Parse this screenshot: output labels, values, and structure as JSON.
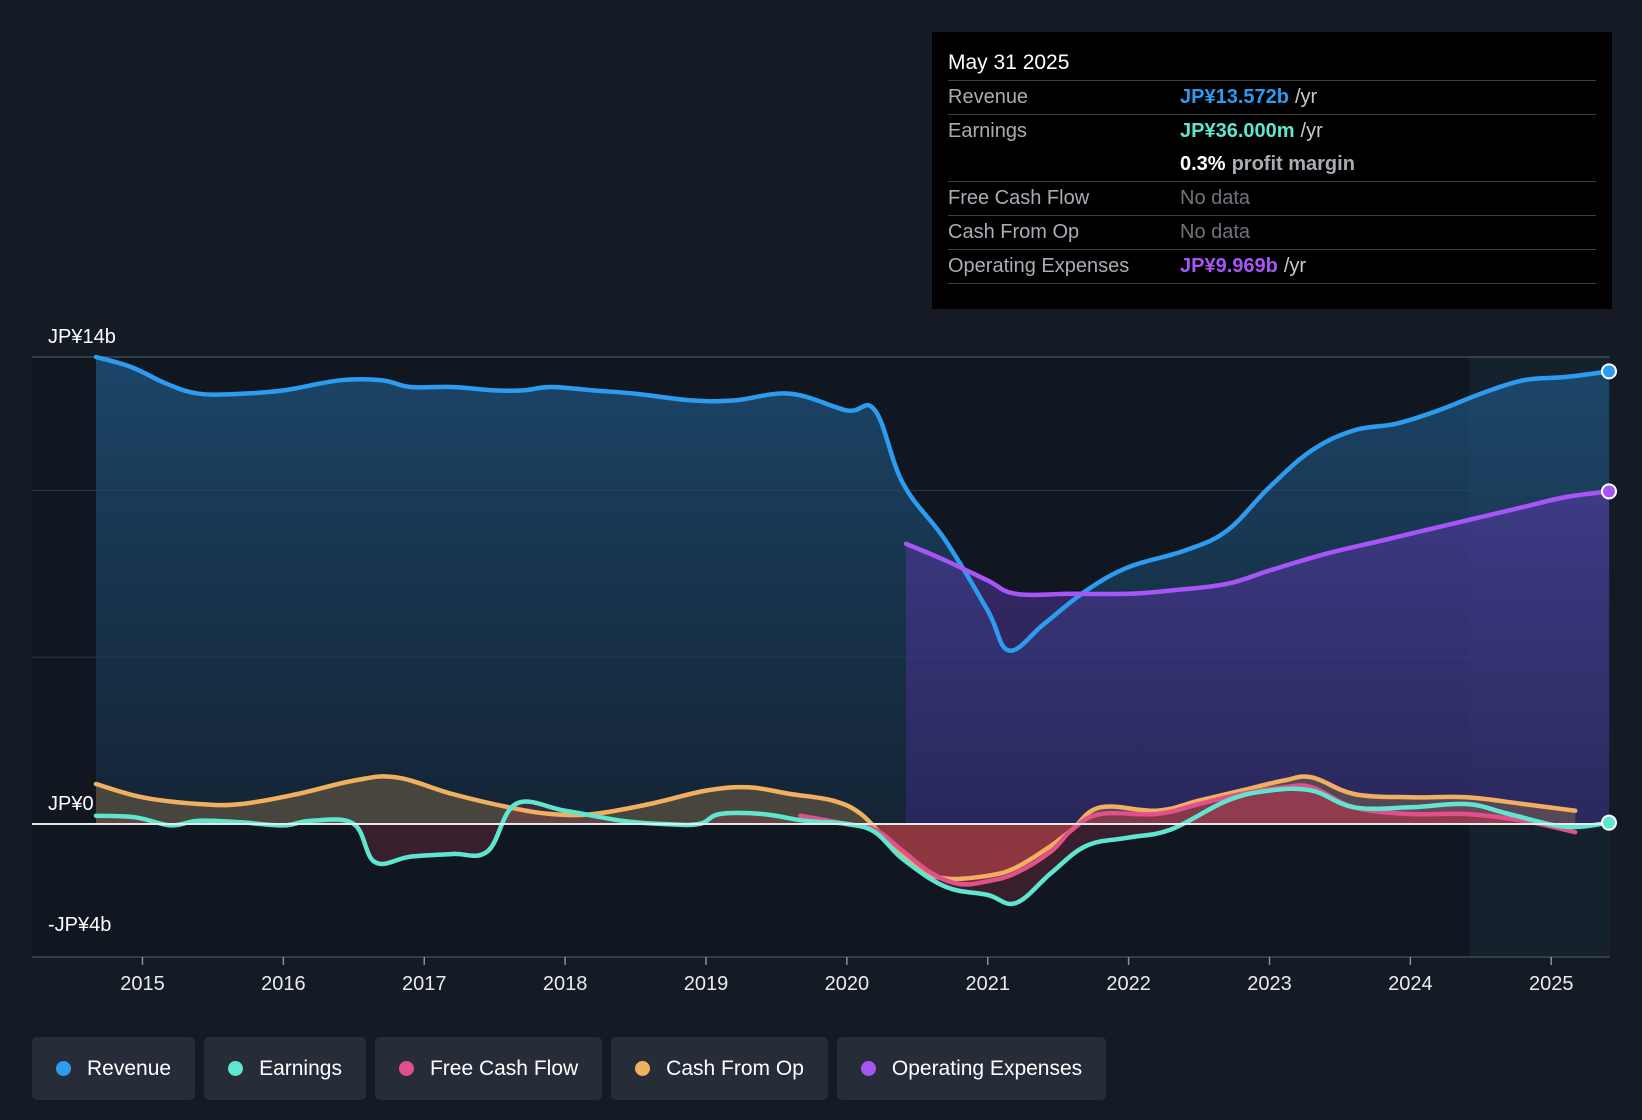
{
  "tooltip": {
    "date": "May 31 2025",
    "revenue_label": "Revenue",
    "revenue_value": "JP¥13.572b",
    "earnings_label": "Earnings",
    "earnings_value": "JP¥36.000m",
    "margin_value": "0.3%",
    "margin_text": "profit margin",
    "fcf_label": "Free Cash Flow",
    "fcf_value": "No data",
    "cfo_label": "Cash From Op",
    "cfo_value": "No data",
    "opex_label": "Operating Expenses",
    "opex_value": "JP¥9.969b",
    "unit": "/yr"
  },
  "legend": [
    {
      "label": "Revenue",
      "color": "#2d9bf0"
    },
    {
      "label": "Earnings",
      "color": "#5ee6d0"
    },
    {
      "label": "Free Cash Flow",
      "color": "#e0508a"
    },
    {
      "label": "Cash From Op",
      "color": "#f0b060"
    },
    {
      "label": "Operating Expenses",
      "color": "#a855f7"
    }
  ],
  "chart_data": {
    "type": "area",
    "y_unit": "JP¥ billions",
    "ylim": [
      -4,
      14
    ],
    "y_tick_labels": [
      {
        "value": 14,
        "label": "JP¥14b"
      },
      {
        "value": 0,
        "label": "JP¥0"
      },
      {
        "value": -4,
        "label": "-JP¥4b"
      }
    ],
    "gridlines": [
      14,
      10,
      5,
      0,
      -4
    ],
    "xlim": [
      2014.67,
      2025.41
    ],
    "x_ticks": [
      2015,
      2016,
      2017,
      2018,
      2019,
      2020,
      2021,
      2022,
      2023,
      2024,
      2025
    ],
    "x_tick_labels": [
      "2015",
      "2016",
      "2017",
      "2018",
      "2019",
      "2020",
      "2021",
      "2022",
      "2023",
      "2024",
      "2025"
    ],
    "forecast_start": 2024.42,
    "series": [
      {
        "name": "Revenue",
        "color": "#2d9bf0",
        "points": [
          [
            2014.67,
            14.0
          ],
          [
            2014.92,
            13.7
          ],
          [
            2015.17,
            13.2
          ],
          [
            2015.4,
            12.9
          ],
          [
            2015.7,
            12.9
          ],
          [
            2016.0,
            13.0
          ],
          [
            2016.4,
            13.3
          ],
          [
            2016.7,
            13.3
          ],
          [
            2016.9,
            13.1
          ],
          [
            2017.2,
            13.1
          ],
          [
            2017.5,
            13.0
          ],
          [
            2017.7,
            13.0
          ],
          [
            2017.9,
            13.1
          ],
          [
            2018.2,
            13.0
          ],
          [
            2018.5,
            12.9
          ],
          [
            2018.9,
            12.7
          ],
          [
            2019.2,
            12.7
          ],
          [
            2019.6,
            12.9
          ],
          [
            2020.0,
            12.4
          ],
          [
            2020.2,
            12.4
          ],
          [
            2020.4,
            10.2
          ],
          [
            2020.7,
            8.5
          ],
          [
            2021.0,
            6.4
          ],
          [
            2021.15,
            5.2
          ],
          [
            2021.4,
            6.0
          ],
          [
            2021.7,
            7.0
          ],
          [
            2022.0,
            7.7
          ],
          [
            2022.4,
            8.2
          ],
          [
            2022.7,
            8.8
          ],
          [
            2023.0,
            10.1
          ],
          [
            2023.3,
            11.2
          ],
          [
            2023.6,
            11.8
          ],
          [
            2023.9,
            12.0
          ],
          [
            2024.2,
            12.4
          ],
          [
            2024.5,
            12.9
          ],
          [
            2024.8,
            13.3
          ],
          [
            2025.1,
            13.4
          ],
          [
            2025.41,
            13.57
          ]
        ]
      },
      {
        "name": "Operating Expenses",
        "color": "#a855f7",
        "points": [
          [
            2020.42,
            8.4
          ],
          [
            2020.7,
            7.9
          ],
          [
            2021.0,
            7.3
          ],
          [
            2021.2,
            6.9
          ],
          [
            2021.6,
            6.9
          ],
          [
            2022.0,
            6.9
          ],
          [
            2022.3,
            7.0
          ],
          [
            2022.7,
            7.2
          ],
          [
            2023.0,
            7.6
          ],
          [
            2023.4,
            8.1
          ],
          [
            2023.8,
            8.5
          ],
          [
            2024.2,
            8.9
          ],
          [
            2024.5,
            9.2
          ],
          [
            2024.8,
            9.5
          ],
          [
            2025.1,
            9.8
          ],
          [
            2025.41,
            9.97
          ]
        ]
      },
      {
        "name": "Cash From Op",
        "color": "#f0b060",
        "points": [
          [
            2014.67,
            1.2
          ],
          [
            2015.0,
            0.8
          ],
          [
            2015.4,
            0.6
          ],
          [
            2015.7,
            0.6
          ],
          [
            2016.1,
            0.9
          ],
          [
            2016.5,
            1.3
          ],
          [
            2016.8,
            1.4
          ],
          [
            2017.2,
            0.9
          ],
          [
            2017.6,
            0.5
          ],
          [
            2017.9,
            0.3
          ],
          [
            2018.2,
            0.3
          ],
          [
            2018.6,
            0.6
          ],
          [
            2019.0,
            1.0
          ],
          [
            2019.3,
            1.1
          ],
          [
            2019.6,
            0.9
          ],
          [
            2019.9,
            0.7
          ],
          [
            2020.1,
            0.3
          ],
          [
            2020.3,
            -0.7
          ],
          [
            2020.5,
            -1.6
          ],
          [
            2020.7,
            -2.0
          ],
          [
            2021.0,
            -1.9
          ],
          [
            2021.2,
            -1.6
          ],
          [
            2021.45,
            -0.8
          ],
          [
            2021.6,
            -0.2
          ],
          [
            2021.8,
            0.5
          ],
          [
            2022.2,
            0.4
          ],
          [
            2022.5,
            0.7
          ],
          [
            2022.8,
            1.0
          ],
          [
            2023.1,
            1.3
          ],
          [
            2023.3,
            1.4
          ],
          [
            2023.6,
            0.9
          ],
          [
            2024.0,
            0.8
          ],
          [
            2024.4,
            0.8
          ],
          [
            2024.8,
            0.6
          ],
          [
            2025.17,
            0.4
          ]
        ]
      },
      {
        "name": "Free Cash Flow",
        "color": "#e0508a",
        "points": [
          [
            2019.67,
            0.25
          ],
          [
            2020.0,
            0.0
          ],
          [
            2020.2,
            -0.2
          ],
          [
            2020.4,
            -1.0
          ],
          [
            2020.6,
            -1.8
          ],
          [
            2020.8,
            -2.2
          ],
          [
            2021.0,
            -2.1
          ],
          [
            2021.2,
            -1.8
          ],
          [
            2021.45,
            -1.0
          ],
          [
            2021.6,
            -0.2
          ],
          [
            2021.8,
            0.3
          ],
          [
            2022.2,
            0.3
          ],
          [
            2022.5,
            0.6
          ],
          [
            2022.8,
            0.9
          ],
          [
            2023.1,
            1.1
          ],
          [
            2023.3,
            1.1
          ],
          [
            2023.6,
            0.5
          ],
          [
            2024.0,
            0.3
          ],
          [
            2024.4,
            0.3
          ],
          [
            2024.8,
            0.1
          ],
          [
            2025.17,
            -0.3
          ]
        ]
      },
      {
        "name": "Earnings",
        "color": "#5ee6d0",
        "points": [
          [
            2014.67,
            0.25
          ],
          [
            2014.95,
            0.2
          ],
          [
            2015.2,
            -0.05
          ],
          [
            2015.4,
            0.1
          ],
          [
            2015.7,
            0.05
          ],
          [
            2016.0,
            -0.05
          ],
          [
            2016.2,
            0.1
          ],
          [
            2016.5,
            0.0
          ],
          [
            2016.65,
            -1.4
          ],
          [
            2016.9,
            -1.2
          ],
          [
            2017.2,
            -1.1
          ],
          [
            2017.45,
            -1.0
          ],
          [
            2017.65,
            0.6
          ],
          [
            2018.0,
            0.4
          ],
          [
            2018.4,
            0.1
          ],
          [
            2018.7,
            0.0
          ],
          [
            2018.95,
            0.0
          ],
          [
            2019.1,
            0.3
          ],
          [
            2019.4,
            0.3
          ],
          [
            2019.7,
            0.1
          ],
          [
            2020.0,
            0.0
          ],
          [
            2020.2,
            -0.3
          ],
          [
            2020.4,
            -1.3
          ],
          [
            2020.7,
            -2.3
          ],
          [
            2021.0,
            -2.6
          ],
          [
            2021.2,
            -2.9
          ],
          [
            2021.45,
            -1.8
          ],
          [
            2021.7,
            -0.8
          ],
          [
            2022.0,
            -0.5
          ],
          [
            2022.3,
            -0.2
          ],
          [
            2022.7,
            0.7
          ],
          [
            2023.0,
            1.0
          ],
          [
            2023.3,
            1.0
          ],
          [
            2023.6,
            0.5
          ],
          [
            2024.0,
            0.5
          ],
          [
            2024.4,
            0.6
          ],
          [
            2024.7,
            0.3
          ],
          [
            2025.1,
            -0.1
          ],
          [
            2025.41,
            0.04
          ]
        ]
      }
    ]
  }
}
